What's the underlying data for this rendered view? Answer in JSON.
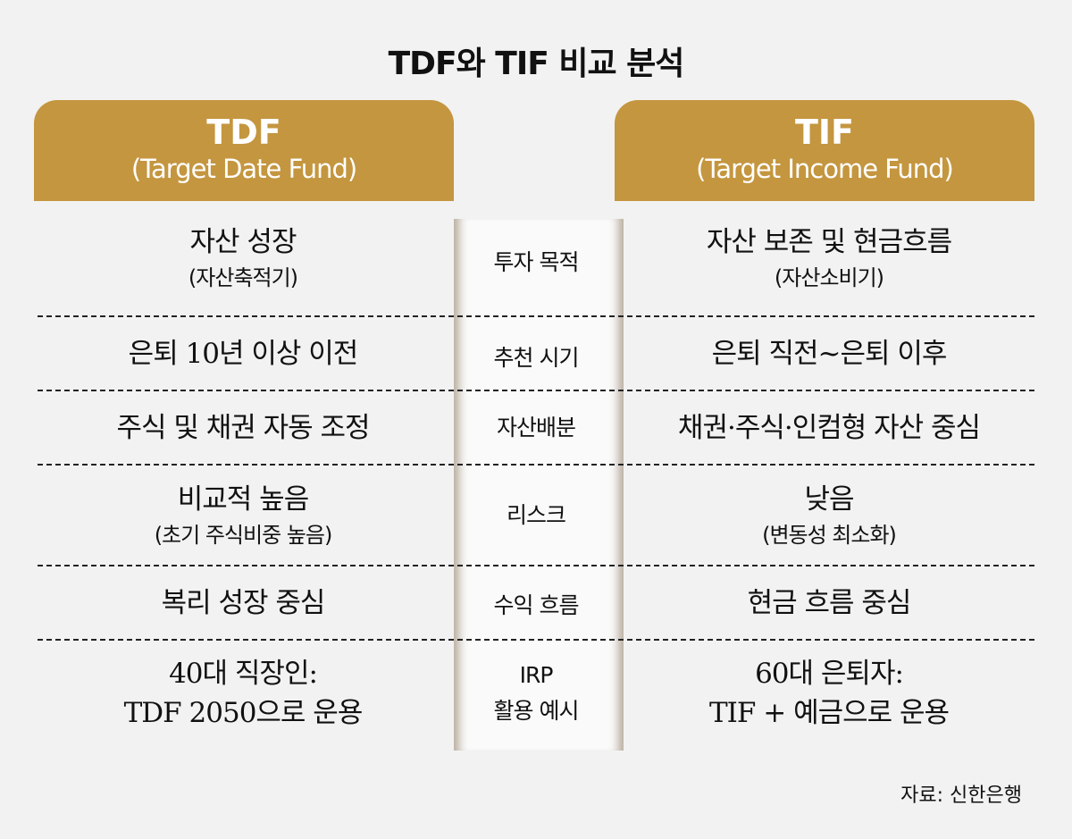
{
  "title": "TDF와 TIF 비교 분석",
  "colors": {
    "header": "#c4963f",
    "background": "#f2f2f2"
  },
  "left_header": {
    "name": "TDF",
    "full": "(Target Date Fund)"
  },
  "right_header": {
    "name": "TIF",
    "full": "(Target Income Fund)"
  },
  "rows": [
    {
      "label": "투자 목적",
      "left": "자산 성장",
      "left_sub": "(자산축적기)",
      "right": "자산 보존 및 현금흐름",
      "right_sub": "(자산소비기)"
    },
    {
      "label": "추천 시기",
      "left": "은퇴 10년 이상 이전",
      "right": "은퇴 직전~은퇴 이후"
    },
    {
      "label": "자산배분",
      "left": "주식 및 채권 자동 조정",
      "right": "채권·주식·인컴형 자산 중심"
    },
    {
      "label": "리스크",
      "left": "비교적 높음",
      "left_sub": "(초기 주식비중 높음)",
      "right": "낮음",
      "right_sub": "(변동성 최소화)"
    },
    {
      "label": "수익 흐름",
      "left": "복리 성장 중심",
      "right": "현금 흐름 중심"
    },
    {
      "label": "IRP",
      "label2": "활용 예시",
      "left": "40대 직장인:",
      "left2": "TDF 2050으로 운용",
      "right": "60대 은퇴자:",
      "right2": "TIF + 예금으로 운용"
    }
  ],
  "source": "자료: 신한은행"
}
